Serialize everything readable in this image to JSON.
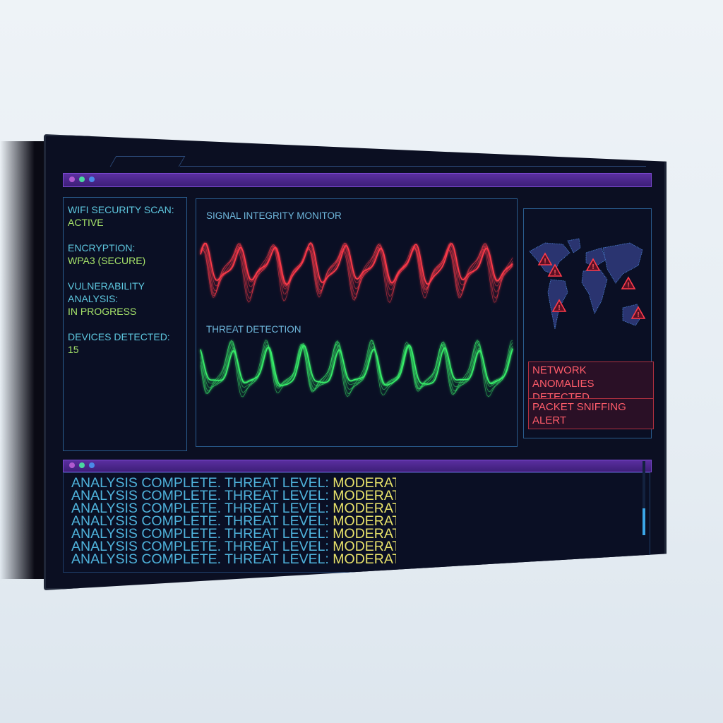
{
  "window_dots": {
    "colors": [
      "#b05ad0",
      "#4ad8a0",
      "#4a8ae8"
    ]
  },
  "status_panel": {
    "items": [
      {
        "label": "WIFI SECURITY SCAN:",
        "value": "ACTIVE"
      },
      {
        "label": "ENCRYPTION:",
        "value": "WPA3 (SECURE)"
      },
      {
        "label": "VULNERABILITY ANALYSIS:",
        "value": "IN PROGRESS"
      },
      {
        "label": "DEVICES DETECTED:",
        "value": "15"
      }
    ]
  },
  "monitor_panel": {
    "signal_title": "SIGNAL INTEGRITY MONITOR",
    "threat_title": "THREAT DETECTION",
    "signal_color": "#ff3a4a",
    "threat_color": "#38f06a"
  },
  "map_panel": {
    "map_icon": "world-map",
    "alert_icon": "warning-triangle-icon",
    "alerts": [
      "NETWORK ANOMALIES DETECTED",
      "PACKET SNIFFING ALERT"
    ]
  },
  "log": {
    "lines": [
      {
        "text": "ANALYSIS COMPLETE. THREAT LEVEL:",
        "level": "MODERATE"
      },
      {
        "text": "ANALYSIS COMPLETE. THREAT LEVEL:",
        "level": "MODERATE"
      },
      {
        "text": "ANALYSIS COMPLETE. THREAT LEVEL:",
        "level": "MODERATE"
      },
      {
        "text": "ANALYSIS COMPLETE. THREAT LEVEL:",
        "level": "MODERATE"
      },
      {
        "text": "ANALYSIS COMPLETE. THREAT LEVEL:",
        "level": "MODERATE"
      },
      {
        "text": "ANALYSIS COMPLETE. THREAT LEVEL:",
        "level": "MODERATE"
      },
      {
        "text": "ANALYSIS COMPLETE. THREAT LEVEL:",
        "level": "MODERATE"
      }
    ]
  }
}
